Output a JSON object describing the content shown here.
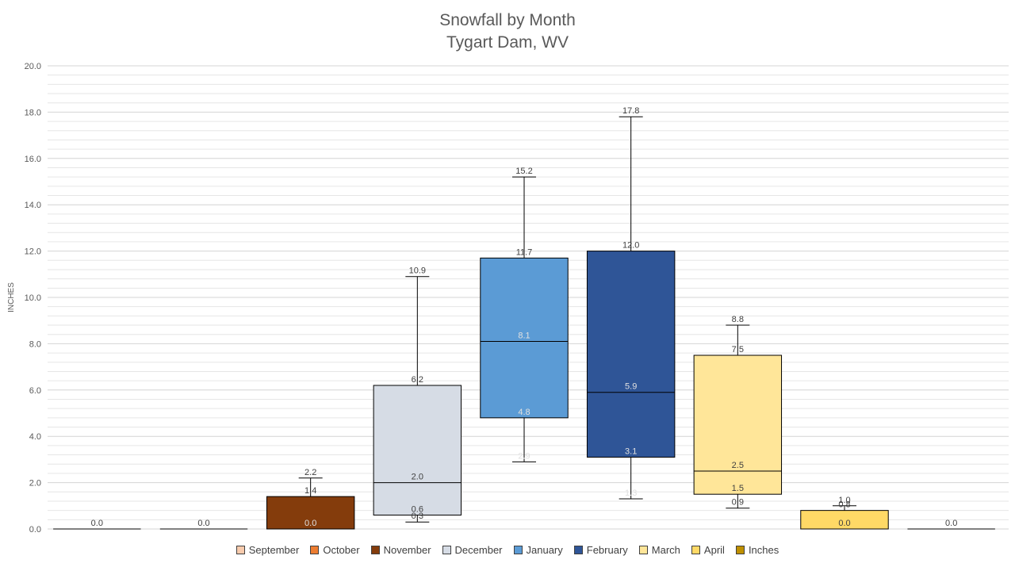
{
  "chart_data": {
    "type": "box",
    "title": "Snowfall by Month",
    "subtitle": "Tygart Dam, WV",
    "ylabel": "INCHES",
    "ylim": [
      0,
      20
    ],
    "yticks": [
      "0.0",
      "2.0",
      "4.0",
      "6.0",
      "8.0",
      "10.0",
      "12.0",
      "14.0",
      "16.0",
      "18.0",
      "20.0"
    ],
    "grid": true,
    "legend_position": "bottom",
    "boxes": [
      {
        "name": "September",
        "color": "#F8CBAD",
        "min": 0.0,
        "q1": 0.0,
        "median": 0.0,
        "q3": 0.0,
        "max": 0.0,
        "labels": [
          "0.0"
        ]
      },
      {
        "name": "October",
        "color": "#ED7D31",
        "min": 0.0,
        "q1": 0.0,
        "median": 0.0,
        "q3": 0.0,
        "max": 0.0,
        "labels": [
          "0.0"
        ]
      },
      {
        "name": "November",
        "color": "#843C0C",
        "min": 0.0,
        "q1": 0.0,
        "median": 0.0,
        "q3": 1.4,
        "max": 2.2,
        "labels": [
          "2.2",
          "1.4",
          "0.0"
        ]
      },
      {
        "name": "December",
        "color": "#D6DCE5",
        "min": 0.3,
        "q1": 0.6,
        "median": 2.0,
        "q3": 6.2,
        "max": 10.9,
        "labels": [
          "10.9",
          "6.2",
          "2.0",
          "0.6",
          "0.3"
        ]
      },
      {
        "name": "January",
        "color": "#5B9BD5",
        "min": 2.9,
        "q1": 4.8,
        "median": 8.1,
        "q3": 11.7,
        "max": 15.2,
        "labels": [
          "15.2",
          "11.7",
          "8.1",
          "4.8",
          "2.9"
        ]
      },
      {
        "name": "February",
        "color": "#2F5597",
        "min": 1.3,
        "q1": 3.1,
        "median": 5.9,
        "q3": 12.0,
        "max": 17.8,
        "labels": [
          "17.8",
          "12.0",
          "5.9",
          "3.1",
          "1.3"
        ]
      },
      {
        "name": "March",
        "color": "#FFE699",
        "min": 0.9,
        "q1": 1.5,
        "median": 2.5,
        "q3": 7.5,
        "max": 8.8,
        "labels": [
          "8.8",
          "7.5",
          "2.5",
          "1.5",
          "0.9"
        ]
      },
      {
        "name": "April",
        "color": "#FFD966",
        "min": 0.0,
        "q1": 0.0,
        "median": 0.0,
        "q3": 0.8,
        "max": 1.0,
        "labels": [
          "1.0",
          "0.8",
          "0.0"
        ]
      },
      {
        "name": "Inches",
        "color": "#BF9000",
        "min": 0.0,
        "q1": 0.0,
        "median": 0.0,
        "q3": 0.0,
        "max": 0.0,
        "labels": [
          "0.0"
        ]
      }
    ],
    "legend": [
      {
        "label": "September",
        "color": "#F8CBAD"
      },
      {
        "label": "October",
        "color": "#ED7D31"
      },
      {
        "label": "November",
        "color": "#843C0C"
      },
      {
        "label": "December",
        "color": "#D6DCE5"
      },
      {
        "label": "January",
        "color": "#5B9BD5"
      },
      {
        "label": "February",
        "color": "#2F5597"
      },
      {
        "label": "March",
        "color": "#FFE699"
      },
      {
        "label": "April",
        "color": "#FFD966"
      },
      {
        "label": "Inches",
        "color": "#BF9000"
      }
    ]
  }
}
